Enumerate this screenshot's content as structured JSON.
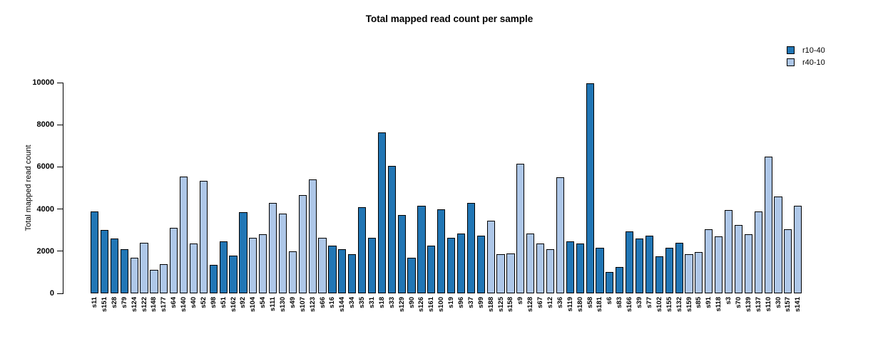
{
  "chart_data": {
    "type": "bar",
    "title": "Total mapped read count per sample",
    "xlabel": "",
    "ylabel": "Total mapped read count",
    "ylim": [
      0,
      10000
    ],
    "yticks": [
      0,
      2000,
      4000,
      6000,
      8000,
      10000
    ],
    "grid": false,
    "legend_position": "top-right",
    "legend": [
      {
        "name": "r10-40",
        "color": "#2176B5"
      },
      {
        "name": "r40-10",
        "color": "#AEC7E8"
      }
    ],
    "bars": [
      {
        "sample": "s11",
        "value": 3900,
        "group": "r10-40"
      },
      {
        "sample": "s151",
        "value": 3000,
        "group": "r10-40"
      },
      {
        "sample": "s28",
        "value": 2600,
        "group": "r10-40"
      },
      {
        "sample": "s79",
        "value": 2100,
        "group": "r10-40"
      },
      {
        "sample": "s124",
        "value": 1700,
        "group": "r40-10"
      },
      {
        "sample": "s122",
        "value": 2400,
        "group": "r40-10"
      },
      {
        "sample": "s148",
        "value": 1100,
        "group": "r40-10"
      },
      {
        "sample": "s177",
        "value": 1400,
        "group": "r40-10"
      },
      {
        "sample": "s64",
        "value": 3100,
        "group": "r40-10"
      },
      {
        "sample": "s140",
        "value": 5550,
        "group": "r40-10"
      },
      {
        "sample": "s40",
        "value": 2350,
        "group": "r40-10"
      },
      {
        "sample": "s52",
        "value": 5350,
        "group": "r40-10"
      },
      {
        "sample": "s98",
        "value": 1350,
        "group": "r10-40"
      },
      {
        "sample": "s51",
        "value": 2450,
        "group": "r10-40"
      },
      {
        "sample": "s162",
        "value": 1800,
        "group": "r10-40"
      },
      {
        "sample": "s92",
        "value": 3850,
        "group": "r10-40"
      },
      {
        "sample": "s104",
        "value": 2650,
        "group": "r40-10"
      },
      {
        "sample": "s54",
        "value": 2800,
        "group": "r40-10"
      },
      {
        "sample": "s111",
        "value": 4300,
        "group": "r40-10"
      },
      {
        "sample": "s130",
        "value": 3800,
        "group": "r40-10"
      },
      {
        "sample": "s49",
        "value": 2000,
        "group": "r40-10"
      },
      {
        "sample": "s107",
        "value": 4650,
        "group": "r40-10"
      },
      {
        "sample": "s123",
        "value": 5400,
        "group": "r40-10"
      },
      {
        "sample": "s66",
        "value": 2650,
        "group": "r40-10"
      },
      {
        "sample": "s16",
        "value": 2250,
        "group": "r10-40"
      },
      {
        "sample": "s144",
        "value": 2100,
        "group": "r10-40"
      },
      {
        "sample": "s34",
        "value": 1850,
        "group": "r10-40"
      },
      {
        "sample": "s35",
        "value": 4100,
        "group": "r10-40"
      },
      {
        "sample": "s31",
        "value": 2650,
        "group": "r10-40"
      },
      {
        "sample": "s18",
        "value": 7650,
        "group": "r10-40"
      },
      {
        "sample": "s33",
        "value": 6050,
        "group": "r10-40"
      },
      {
        "sample": "s129",
        "value": 3700,
        "group": "r10-40"
      },
      {
        "sample": "s90",
        "value": 1700,
        "group": "r10-40"
      },
      {
        "sample": "s126",
        "value": 4150,
        "group": "r10-40"
      },
      {
        "sample": "s161",
        "value": 2250,
        "group": "r10-40"
      },
      {
        "sample": "s100",
        "value": 4000,
        "group": "r10-40"
      },
      {
        "sample": "s19",
        "value": 2650,
        "group": "r10-40"
      },
      {
        "sample": "s96",
        "value": 2850,
        "group": "r10-40"
      },
      {
        "sample": "s37",
        "value": 4300,
        "group": "r10-40"
      },
      {
        "sample": "s99",
        "value": 2750,
        "group": "r10-40"
      },
      {
        "sample": "s188",
        "value": 3450,
        "group": "r40-10"
      },
      {
        "sample": "s125",
        "value": 1850,
        "group": "r40-10"
      },
      {
        "sample": "s158",
        "value": 1900,
        "group": "r40-10"
      },
      {
        "sample": "s9",
        "value": 6150,
        "group": "r40-10"
      },
      {
        "sample": "s128",
        "value": 2850,
        "group": "r40-10"
      },
      {
        "sample": "s67",
        "value": 2350,
        "group": "r40-10"
      },
      {
        "sample": "s12",
        "value": 2100,
        "group": "r40-10"
      },
      {
        "sample": "s36",
        "value": 5500,
        "group": "r40-10"
      },
      {
        "sample": "s119",
        "value": 2450,
        "group": "r10-40"
      },
      {
        "sample": "s180",
        "value": 2350,
        "group": "r10-40"
      },
      {
        "sample": "s58",
        "value": 9950,
        "group": "r10-40"
      },
      {
        "sample": "s181",
        "value": 2150,
        "group": "r10-40"
      },
      {
        "sample": "s6",
        "value": 1000,
        "group": "r10-40"
      },
      {
        "sample": "s83",
        "value": 1250,
        "group": "r10-40"
      },
      {
        "sample": "s166",
        "value": 2950,
        "group": "r10-40"
      },
      {
        "sample": "s39",
        "value": 2600,
        "group": "r10-40"
      },
      {
        "sample": "s77",
        "value": 2750,
        "group": "r10-40"
      },
      {
        "sample": "s102",
        "value": 1750,
        "group": "r10-40"
      },
      {
        "sample": "s155",
        "value": 2150,
        "group": "r10-40"
      },
      {
        "sample": "s132",
        "value": 2400,
        "group": "r10-40"
      },
      {
        "sample": "s159",
        "value": 1850,
        "group": "r40-10"
      },
      {
        "sample": "s85",
        "value": 1950,
        "group": "r40-10"
      },
      {
        "sample": "s91",
        "value": 3050,
        "group": "r40-10"
      },
      {
        "sample": "s118",
        "value": 2700,
        "group": "r40-10"
      },
      {
        "sample": "s3",
        "value": 3950,
        "group": "r40-10"
      },
      {
        "sample": "s70",
        "value": 3250,
        "group": "r40-10"
      },
      {
        "sample": "s139",
        "value": 2800,
        "group": "r40-10"
      },
      {
        "sample": "s137",
        "value": 3900,
        "group": "r40-10"
      },
      {
        "sample": "s110",
        "value": 6500,
        "group": "r40-10"
      },
      {
        "sample": "s30",
        "value": 4600,
        "group": "r40-10"
      },
      {
        "sample": "s157",
        "value": 3050,
        "group": "r40-10"
      },
      {
        "sample": "s141",
        "value": 4150,
        "group": "r40-10"
      }
    ]
  }
}
